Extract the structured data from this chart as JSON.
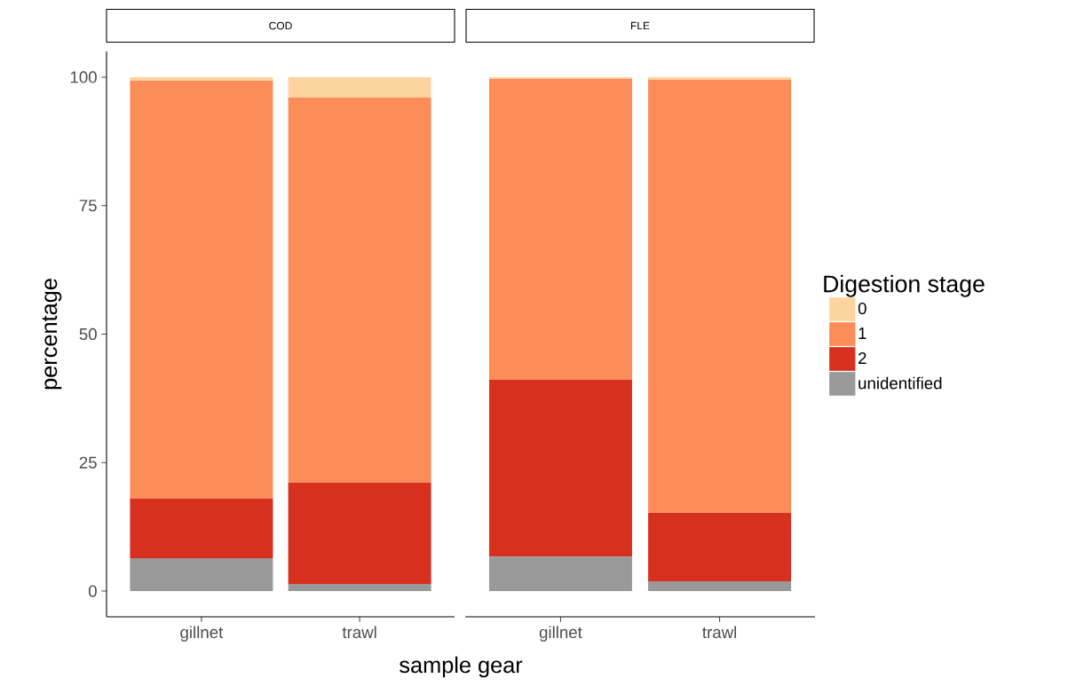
{
  "chart_data": [
    {
      "type": "bar",
      "stacked": true,
      "title": "COD",
      "ylabel": "percentage",
      "xlabel": "sample gear",
      "categories": [
        "gillnet",
        "trawl"
      ],
      "ylim": [
        -5,
        105
      ],
      "yticks": [
        0,
        25,
        50,
        75,
        100
      ],
      "series": [
        {
          "color": "#999999",
          "values": [
            6.4,
            1.4
          ]
        },
        {
          "color": "#d7301f",
          "values": [
            11.6,
            19.7
          ]
        },
        {
          "color": "#fc8d59",
          "values": [
            81.3,
            74.9
          ]
        },
        {
          "color": "#fdd49e",
          "values": [
            0.7,
            4.0
          ]
        }
      ]
    },
    {
      "type": "bar",
      "stacked": true,
      "title": "FLE",
      "legend_title": "Digestion stage",
      "legend": "right",
      "tick_labels": "x",
      "categories": [
        "gillnet",
        "trawl"
      ],
      "ylim": [
        -5,
        105
      ],
      "yticks": [
        0,
        25,
        50,
        75,
        100
      ],
      "series": [
        {
          "name": "unidentified",
          "color": "#999999",
          "values": [
            6.7,
            1.9
          ]
        },
        {
          "name": "2",
          "color": "#d7301f",
          "values": [
            34.4,
            13.3
          ]
        },
        {
          "name": "1",
          "color": "#fc8d59",
          "values": [
            58.6,
            84.3
          ]
        },
        {
          "name": "0",
          "color": "#fdd49e",
          "values": [
            0.3,
            0.5
          ]
        }
      ]
    }
  ]
}
